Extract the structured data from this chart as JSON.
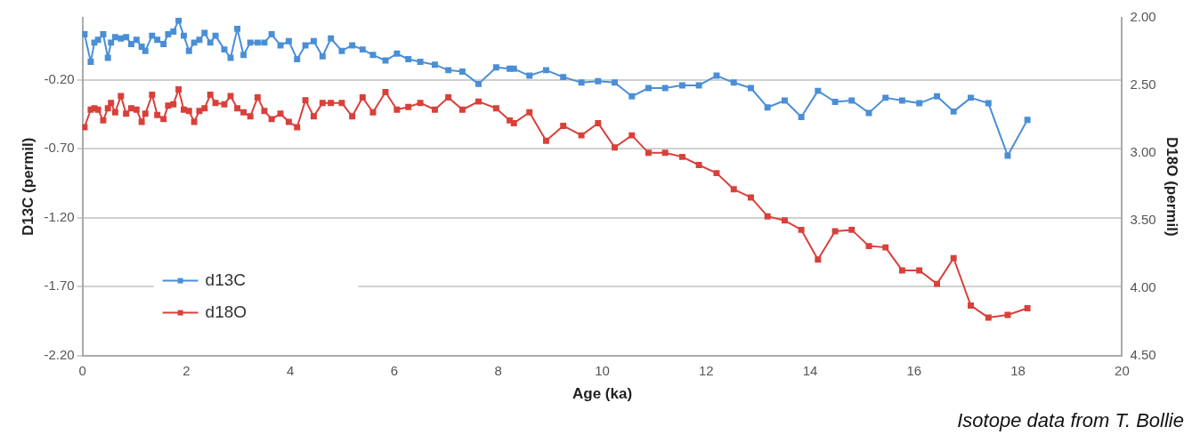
{
  "chart_data": {
    "type": "line",
    "xlabel": "Age (ka)",
    "ylabel": "D13C (permil)",
    "y2label": "D18O (permil)",
    "annotations": [
      "Isotope data from T. Bollie"
    ],
    "x": [
      0.04,
      0.16,
      0.23,
      0.3,
      0.4,
      0.49,
      0.55,
      0.63,
      0.74,
      0.84,
      0.94,
      1.04,
      1.14,
      1.21,
      1.34,
      1.44,
      1.56,
      1.65,
      1.75,
      1.85,
      1.95,
      2.05,
      2.15,
      2.25,
      2.35,
      2.46,
      2.56,
      2.73,
      2.85,
      2.98,
      3.1,
      3.23,
      3.37,
      3.5,
      3.64,
      3.81,
      3.97,
      4.13,
      4.29,
      4.45,
      4.62,
      4.78,
      4.99,
      5.19,
      5.39,
      5.59,
      5.83,
      6.05,
      6.27,
      6.5,
      6.78,
      7.04,
      7.31,
      7.62,
      7.96,
      8.22,
      8.3,
      8.6,
      8.92,
      9.25,
      9.6,
      9.92,
      10.24,
      10.57,
      10.89,
      11.21,
      11.54,
      11.86,
      12.2,
      12.53,
      12.86,
      13.18,
      13.51,
      13.83,
      14.15,
      14.48,
      14.8,
      15.13,
      15.45,
      15.77,
      16.1,
      16.44,
      16.76,
      17.09,
      17.43,
      17.8,
      18.18
    ],
    "series": [
      {
        "name": "d13C",
        "color": "#4a8fd6",
        "values": [
          0.13,
          -0.07,
          0.07,
          0.09,
          0.13,
          -0.04,
          0.07,
          0.11,
          0.1,
          0.11,
          0.06,
          0.09,
          0.04,
          0.01,
          0.12,
          0.09,
          0.06,
          0.13,
          0.15,
          0.23,
          0.12,
          0.01,
          0.07,
          0.09,
          0.14,
          0.07,
          0.12,
          0.02,
          -0.04,
          0.17,
          -0.02,
          0.07,
          0.07,
          0.07,
          0.13,
          0.05,
          0.08,
          -0.05,
          0.05,
          0.08,
          -0.03,
          0.1,
          0.01,
          0.05,
          0.02,
          -0.02,
          -0.06,
          -0.01,
          -0.05,
          -0.07,
          -0.09,
          -0.13,
          -0.14,
          -0.23,
          -0.11,
          -0.12,
          -0.12,
          -0.17,
          -0.13,
          -0.18,
          -0.22,
          -0.21,
          -0.22,
          -0.32,
          -0.26,
          -0.26,
          -0.24,
          -0.24,
          -0.17,
          -0.22,
          -0.26,
          -0.4,
          -0.35,
          -0.47,
          -0.28,
          -0.36,
          -0.35,
          -0.44,
          -0.33,
          -0.35,
          -0.37,
          -0.32,
          -0.43,
          -0.33,
          -0.37,
          -0.75,
          -0.49
        ]
      },
      {
        "name": "d18O",
        "color": "#d9403a",
        "axis": "y2",
        "values": [
          2.81,
          2.68,
          2.67,
          2.68,
          2.76,
          2.67,
          2.63,
          2.7,
          2.58,
          2.71,
          2.67,
          2.68,
          2.77,
          2.71,
          2.57,
          2.72,
          2.75,
          2.65,
          2.64,
          2.53,
          2.68,
          2.69,
          2.77,
          2.69,
          2.67,
          2.57,
          2.63,
          2.64,
          2.58,
          2.67,
          2.7,
          2.73,
          2.59,
          2.69,
          2.75,
          2.71,
          2.77,
          2.81,
          2.61,
          2.73,
          2.63,
          2.63,
          2.63,
          2.73,
          2.59,
          2.7,
          2.55,
          2.68,
          2.66,
          2.63,
          2.68,
          2.59,
          2.68,
          2.62,
          2.67,
          2.76,
          2.78,
          2.7,
          2.91,
          2.8,
          2.87,
          2.78,
          2.96,
          2.87,
          3.0,
          3.0,
          3.03,
          3.09,
          3.15,
          3.27,
          3.33,
          3.47,
          3.5,
          3.57,
          3.79,
          3.58,
          3.57,
          3.69,
          3.7,
          3.87,
          3.87,
          3.97,
          3.78,
          4.13,
          4.22,
          4.2,
          4.15
        ]
      }
    ],
    "xlim": [
      0,
      20
    ],
    "xticks": [
      0,
      2,
      4,
      6,
      8,
      10,
      12,
      14,
      16,
      18,
      20
    ],
    "ylim": [
      -2.2,
      0.25
    ],
    "yticks": [
      {
        "value": -2.2,
        "label": "-2.20"
      },
      {
        "value": -1.7,
        "label": "-1.70"
      },
      {
        "value": -1.2,
        "label": "-1.20"
      },
      {
        "value": -0.7,
        "label": "-0.70"
      },
      {
        "value": -0.2,
        "label": "-0.20"
      }
    ],
    "y2lim": [
      4.5,
      2.0
    ],
    "y2ticks": [
      {
        "value": 2.0,
        "label": "2.00"
      },
      {
        "value": 2.5,
        "label": "2.50"
      },
      {
        "value": 3.0,
        "label": "3.00"
      },
      {
        "value": 3.5,
        "label": "3.50"
      },
      {
        "value": 4.0,
        "label": "4.00"
      },
      {
        "value": 4.5,
        "label": "4.50"
      }
    ],
    "grid": "y",
    "legend": "bottom left",
    "marker": "square",
    "line_style": "solid"
  }
}
